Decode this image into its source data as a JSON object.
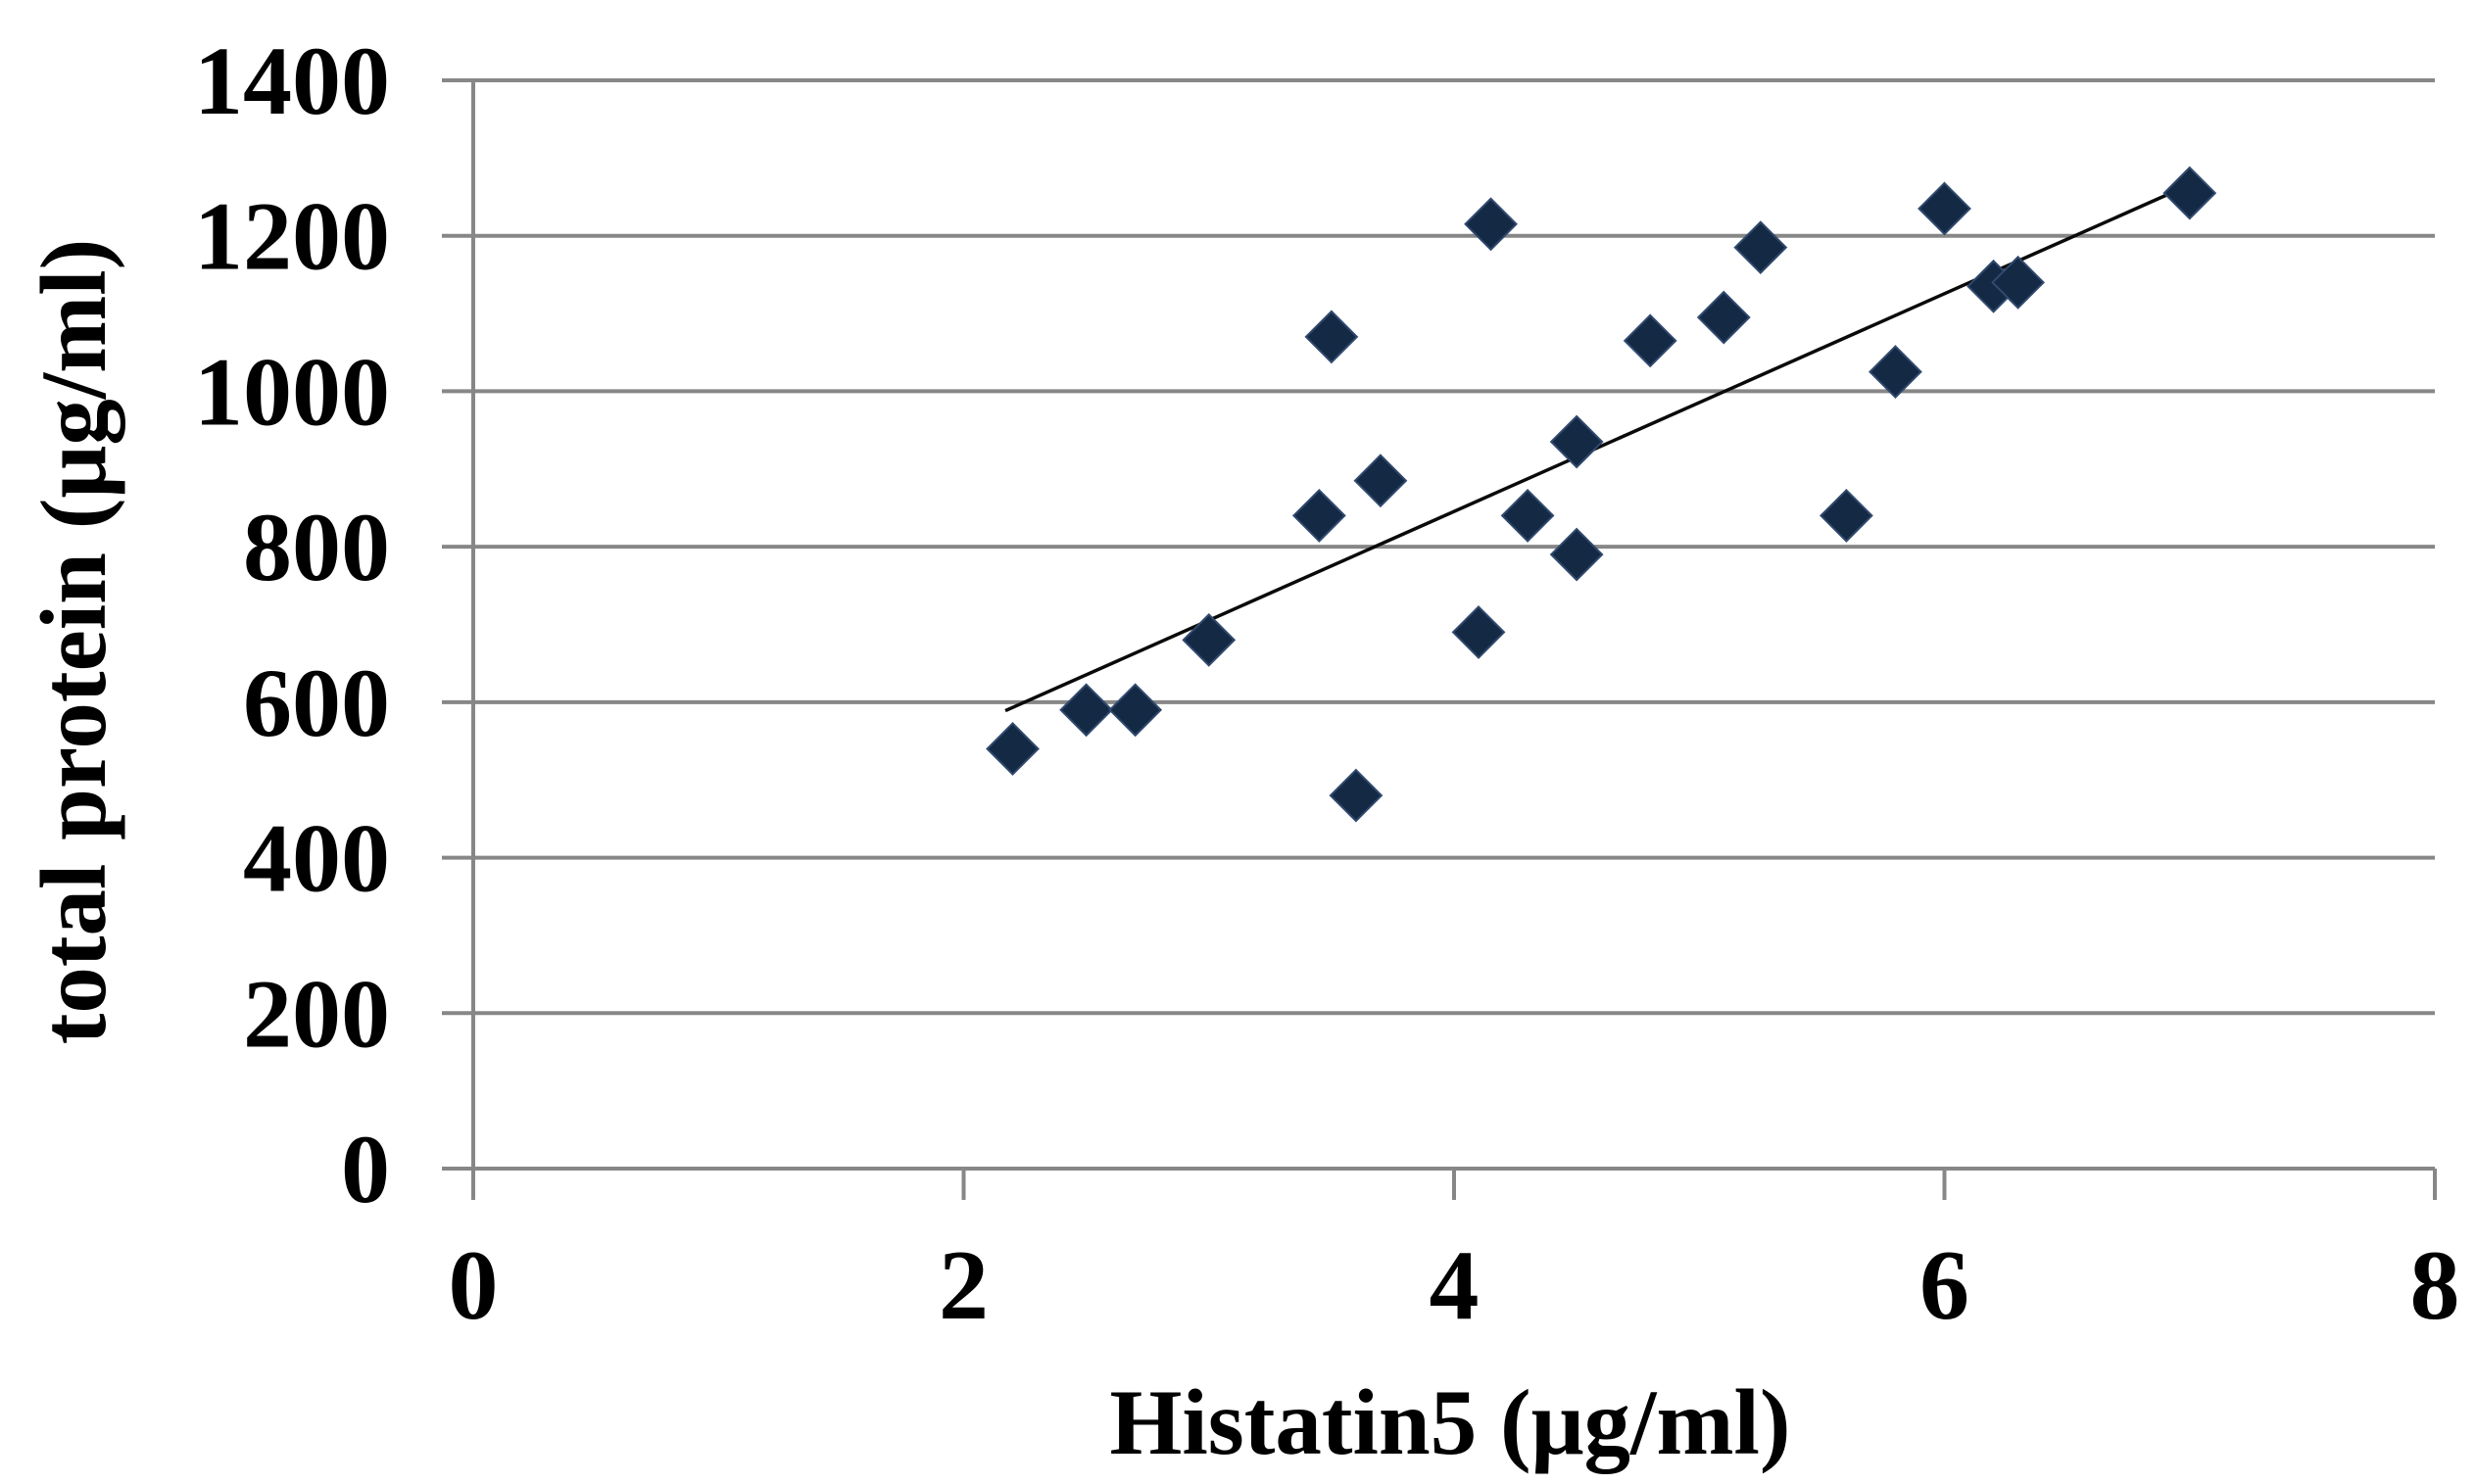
{
  "figure": {
    "kind": "excel-style scatter plot",
    "background": "#ffffff"
  },
  "chart_data": {
    "type": "scatter",
    "title": "",
    "xlabel": "Histatin5 (μg/ml)",
    "ylabel": "total protein (μg/ml)",
    "xlim": [
      0,
      8
    ],
    "ylim": [
      0,
      1400
    ],
    "x_ticks": [
      0,
      2,
      4,
      6,
      8
    ],
    "y_ticks": [
      1400,
      1200,
      1000,
      800,
      600,
      400,
      200,
      0
    ],
    "grid": "horizontal",
    "legend": "none",
    "points": [
      [
        2.2,
        540
      ],
      [
        2.5,
        590
      ],
      [
        2.7,
        590
      ],
      [
        3.0,
        680
      ],
      [
        3.45,
        840
      ],
      [
        3.5,
        1070
      ],
      [
        3.6,
        480
      ],
      [
        3.7,
        885
      ],
      [
        4.1,
        690
      ],
      [
        4.15,
        1215
      ],
      [
        4.3,
        840
      ],
      [
        4.5,
        935
      ],
      [
        4.5,
        790
      ],
      [
        4.8,
        1065
      ],
      [
        5.1,
        1095
      ],
      [
        5.25,
        1185
      ],
      [
        5.6,
        840
      ],
      [
        5.8,
        1025
      ],
      [
        6.0,
        1235
      ],
      [
        6.2,
        1135
      ],
      [
        6.3,
        1140
      ],
      [
        7.0,
        1255
      ]
    ],
    "trendline": {
      "x1": 2.17,
      "y1": 589,
      "x2": 6.91,
      "y2": 1253
    },
    "marker": {
      "shape": "diamond",
      "color": "#132944",
      "edge": "#31496e"
    },
    "colors": {
      "grid": "#878787",
      "axis": "#878787",
      "trend": "#0a0a0a",
      "text": "#000000"
    }
  }
}
